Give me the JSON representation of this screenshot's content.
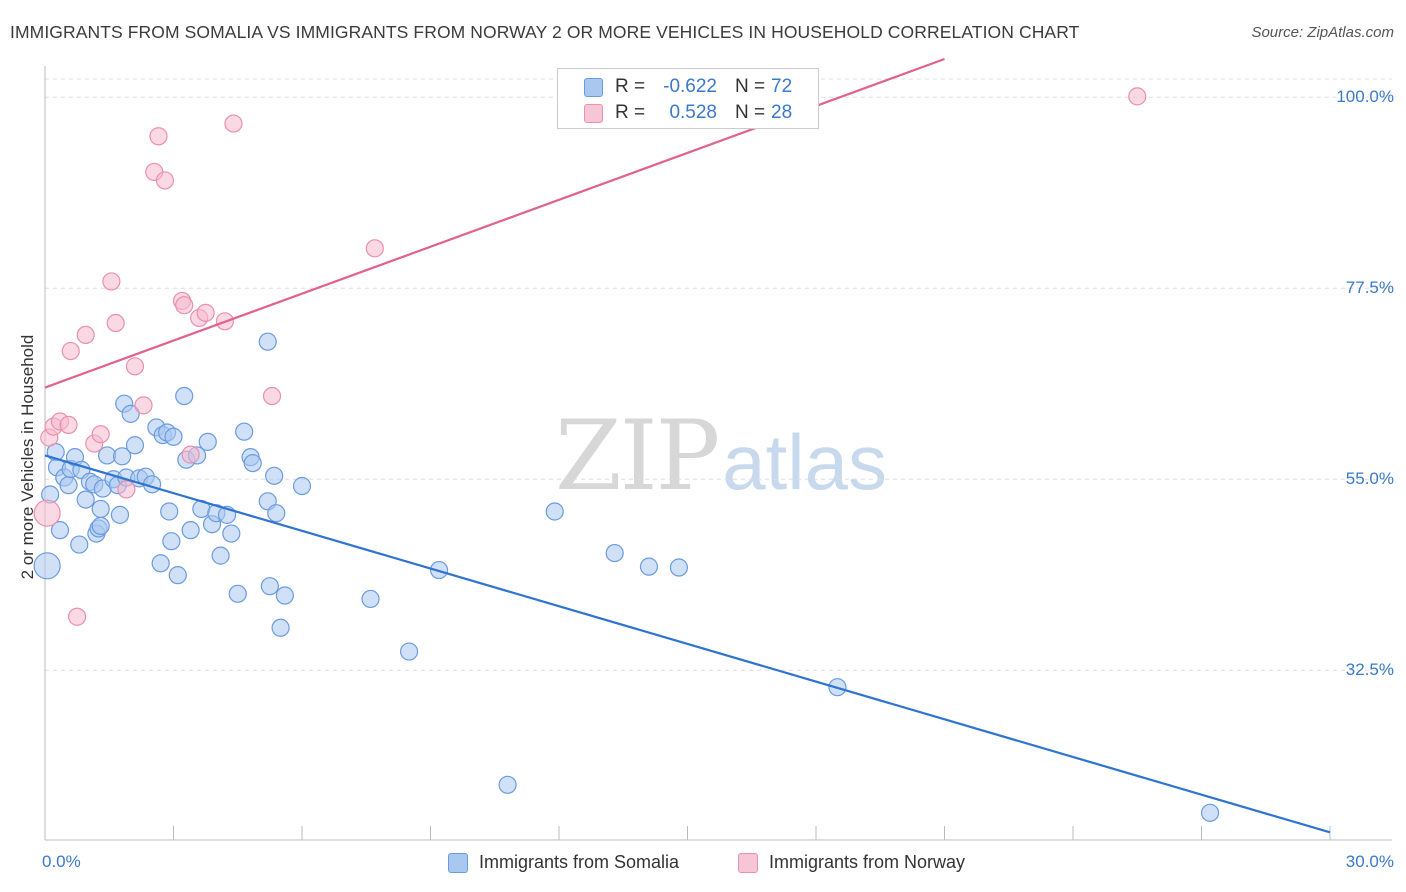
{
  "title": "IMMIGRANTS FROM SOMALIA VS IMMIGRANTS FROM NORWAY 2 OR MORE VEHICLES IN HOUSEHOLD CORRELATION CHART",
  "source": "Source: ZipAtlas.com",
  "watermark": {
    "zip": "ZIP",
    "atlas": "atlas"
  },
  "legend": {
    "somalia": {
      "r_label": "R =",
      "r_value": "-0.622",
      "n_label": "N =",
      "n_value": "72"
    },
    "norway": {
      "r_label": "R =",
      "r_value": "0.528",
      "n_label": "N =",
      "n_value": "28"
    }
  },
  "bottom_legend": {
    "somalia": "Immigrants from Somalia",
    "norway": "Immigrants from Norway"
  },
  "colors": {
    "somalia_fill": "#a9c8f0",
    "somalia_stroke": "#6a9be0",
    "somalia_line": "#2f74d0",
    "norway_fill": "#f7b9cd",
    "norway_stroke": "#ea8fae",
    "norway_line": "#e0628d",
    "axis_text": "#3a78c9",
    "grid": "#dddddd"
  },
  "chart_data": {
    "type": "scatter",
    "title": "IMMIGRANTS FROM SOMALIA VS IMMIGRANTS FROM NORWAY 2 OR MORE VEHICLES IN HOUSEHOLD CORRELATION CHART",
    "xlabel": "",
    "ylabel": "2 or more Vehicles in Household",
    "x_tick_labels": {
      "min": "0.0%",
      "max": "30.0%"
    },
    "y_tick_labels": [
      {
        "value": 100.0,
        "label": "100.0%"
      },
      {
        "value": 77.5,
        "label": "77.5%"
      },
      {
        "value": 55.0,
        "label": "55.0%"
      },
      {
        "value": 32.5,
        "label": "32.5%"
      }
    ],
    "xlim": [
      0,
      30
    ],
    "ylim": [
      12.5,
      102.5
    ],
    "series": [
      {
        "name": "Immigrants from Somalia",
        "r": -0.622,
        "n": 72,
        "trend": {
          "x": [
            0,
            30
          ],
          "y": [
            57.8,
            13.4
          ]
        },
        "points": [
          [
            0.05,
            44.8
          ],
          [
            0.12,
            53.2
          ],
          [
            0.25,
            58.2
          ],
          [
            0.28,
            56.4
          ],
          [
            0.35,
            49.0
          ],
          [
            0.45,
            55.2
          ],
          [
            0.55,
            54.3
          ],
          [
            0.6,
            56.2
          ],
          [
            0.7,
            57.6
          ],
          [
            0.8,
            47.3
          ],
          [
            0.85,
            56.1
          ],
          [
            0.95,
            52.6
          ],
          [
            1.05,
            54.7
          ],
          [
            1.15,
            54.4
          ],
          [
            1.2,
            48.6
          ],
          [
            1.25,
            49.2
          ],
          [
            1.3,
            49.5
          ],
          [
            1.35,
            53.9
          ],
          [
            1.45,
            57.8
          ],
          [
            1.6,
            55.0
          ],
          [
            1.7,
            54.3
          ],
          [
            1.75,
            50.8
          ],
          [
            1.8,
            57.7
          ],
          [
            1.85,
            63.9
          ],
          [
            1.9,
            55.2
          ],
          [
            2.0,
            62.7
          ],
          [
            2.1,
            59.0
          ],
          [
            2.2,
            55.1
          ],
          [
            2.35,
            55.3
          ],
          [
            2.5,
            54.4
          ],
          [
            2.6,
            61.1
          ],
          [
            2.7,
            45.1
          ],
          [
            2.75,
            60.2
          ],
          [
            2.85,
            60.5
          ],
          [
            2.9,
            51.2
          ],
          [
            2.95,
            47.7
          ],
          [
            3.0,
            60.0
          ],
          [
            3.1,
            43.7
          ],
          [
            3.25,
            64.8
          ],
          [
            3.3,
            57.3
          ],
          [
            3.4,
            49.0
          ],
          [
            3.55,
            57.8
          ],
          [
            3.65,
            51.5
          ],
          [
            3.8,
            59.4
          ],
          [
            3.9,
            49.7
          ],
          [
            4.0,
            51.0
          ],
          [
            4.1,
            46.0
          ],
          [
            4.25,
            50.8
          ],
          [
            4.35,
            48.6
          ],
          [
            4.5,
            41.5
          ],
          [
            4.65,
            60.6
          ],
          [
            4.8,
            57.6
          ],
          [
            4.85,
            56.9
          ],
          [
            5.2,
            71.2
          ],
          [
            5.2,
            52.4
          ],
          [
            5.25,
            42.4
          ],
          [
            5.35,
            55.4
          ],
          [
            5.4,
            51.0
          ],
          [
            5.5,
            37.5
          ],
          [
            5.6,
            41.3
          ],
          [
            6.0,
            54.2
          ],
          [
            7.6,
            40.9
          ],
          [
            8.5,
            34.7
          ],
          [
            9.2,
            44.3
          ],
          [
            10.8,
            19.0
          ],
          [
            11.9,
            51.2
          ],
          [
            13.3,
            46.3
          ],
          [
            14.1,
            44.7
          ],
          [
            14.8,
            44.6
          ],
          [
            18.5,
            30.5
          ],
          [
            27.2,
            15.7
          ],
          [
            1.3,
            51.5
          ]
        ]
      },
      {
        "name": "Immigrants from Norway",
        "r": 0.528,
        "n": 28,
        "trend": {
          "x": [
            0,
            21.0
          ],
          "y": [
            65.8,
            104.5
          ]
        },
        "points": [
          [
            0.05,
            51.0
          ],
          [
            0.1,
            59.9
          ],
          [
            0.2,
            61.2
          ],
          [
            0.35,
            61.8
          ],
          [
            0.55,
            61.4
          ],
          [
            0.6,
            70.1
          ],
          [
            0.75,
            38.8
          ],
          [
            0.95,
            72.0
          ],
          [
            1.15,
            59.2
          ],
          [
            1.3,
            60.3
          ],
          [
            1.55,
            78.3
          ],
          [
            1.65,
            73.4
          ],
          [
            1.9,
            53.8
          ],
          [
            2.1,
            68.3
          ],
          [
            2.3,
            63.7
          ],
          [
            2.55,
            91.2
          ],
          [
            2.65,
            95.4
          ],
          [
            2.8,
            90.2
          ],
          [
            3.2,
            76.0
          ],
          [
            3.25,
            75.5
          ],
          [
            3.4,
            57.9
          ],
          [
            3.6,
            74.0
          ],
          [
            3.75,
            74.6
          ],
          [
            4.2,
            73.6
          ],
          [
            4.4,
            96.9
          ],
          [
            5.3,
            64.8
          ],
          [
            7.7,
            82.2
          ],
          [
            25.5,
            100.1
          ]
        ]
      }
    ]
  }
}
